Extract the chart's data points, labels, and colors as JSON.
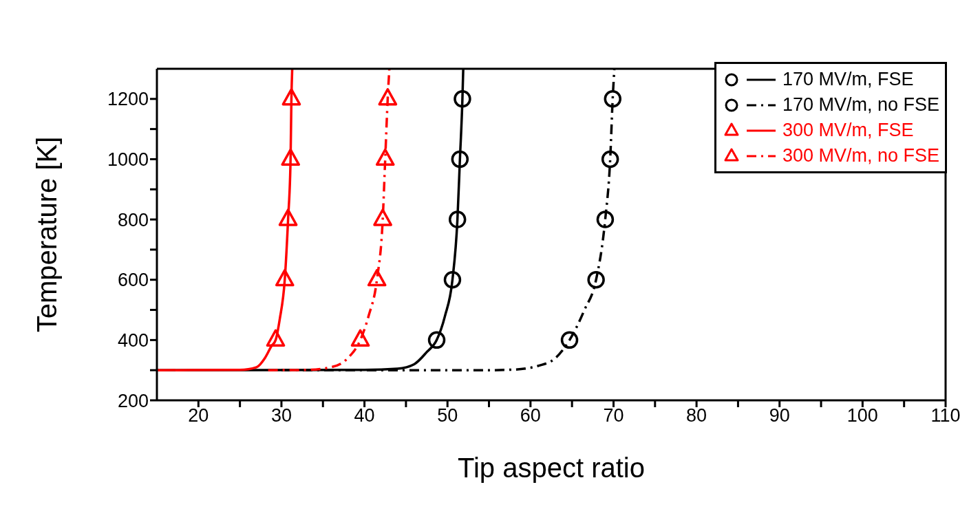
{
  "chart_data": {
    "type": "line",
    "xlabel": "Tip aspect ratio",
    "ylabel": "Temperature [K]",
    "xlim": [
      15,
      110
    ],
    "xticks": [
      20,
      {
        "value": 25,
        "label": null
      },
      30,
      {
        "value": 35,
        "label": null
      },
      40,
      {
        "value": 45,
        "label": null
      },
      50,
      {
        "value": 55,
        "label": null
      },
      60,
      {
        "value": 65,
        "label": null
      },
      70,
      {
        "value": 75,
        "label": null
      },
      80,
      {
        "value": 85,
        "label": null
      },
      90,
      {
        "value": 95,
        "label": null
      },
      100,
      {
        "value": 105,
        "label": null
      },
      110
    ],
    "ylim": [
      200,
      1300
    ],
    "yticks": [
      200,
      {
        "value": 300,
        "label": null
      },
      400,
      {
        "value": 500,
        "label": null
      },
      600,
      {
        "value": 700,
        "label": null
      },
      800,
      {
        "value": 900,
        "label": null
      },
      1000,
      {
        "value": 1100,
        "label": null
      },
      1200
    ],
    "grid": false,
    "legend": "top right",
    "series": [
      {
        "name": "170 MV/m, FSE",
        "color": "#000000",
        "line_style": "solid",
        "marker": "none",
        "x": [
          15,
          40,
          44,
          46,
          47.5,
          48.7,
          49.7,
          50.6,
          51.2,
          51.5,
          51.8,
          51.9
        ],
        "values": [
          300,
          301,
          305,
          320,
          360,
          400,
          480,
          600,
          800,
          1000,
          1200,
          1300
        ]
      },
      {
        "type": "scatter",
        "color": "#000000",
        "marker": "circle",
        "x": [
          48.7,
          50.6,
          51.2,
          51.5,
          51.8
        ],
        "values": [
          400,
          600,
          800,
          1000,
          1200
        ]
      },
      {
        "name": "170 MV/m, no FSE",
        "color": "#000000",
        "line_style": "dashdot",
        "marker": "none",
        "x": [
          30,
          55,
          58,
          61,
          63,
          64.7,
          66.5,
          67.9,
          69,
          69.6,
          69.9,
          70.1
        ],
        "values": [
          300,
          300,
          302,
          315,
          340,
          400,
          500,
          600,
          800,
          1000,
          1200,
          1300
        ]
      },
      {
        "type": "scatter",
        "color": "#000000",
        "marker": "circle",
        "x": [
          64.7,
          67.9,
          69,
          69.6,
          69.9
        ],
        "values": [
          400,
          600,
          800,
          1000,
          1200
        ]
      },
      {
        "name": "300 MV/m, FSE",
        "color": "#ff0000",
        "line_style": "solid",
        "marker": "none",
        "x": [
          15,
          25,
          27,
          28,
          28.8,
          29.3,
          29.8,
          30.4,
          30.8,
          31.1,
          31.2,
          31.3
        ],
        "values": [
          300,
          301,
          310,
          340,
          380,
          400,
          470,
          600,
          800,
          1000,
          1200,
          1300
        ]
      },
      {
        "type": "scatter",
        "color": "#ff0000",
        "marker": "triangle",
        "x": [
          29.3,
          30.4,
          30.8,
          31.1,
          31.2
        ],
        "values": [
          400,
          600,
          800,
          1000,
          1200
        ]
      },
      {
        "name": "300 MV/m, no FSE",
        "color": "#ff0000",
        "line_style": "dashdot",
        "marker": "none",
        "x": [
          28.4,
          33,
          36,
          38,
          39.5,
          40.5,
          41.5,
          42.2,
          42.5,
          42.8,
          43
        ],
        "values": [
          300,
          301,
          310,
          340,
          400,
          480,
          600,
          800,
          1000,
          1200,
          1300
        ]
      },
      {
        "type": "scatter",
        "color": "#ff0000",
        "marker": "triangle",
        "x": [
          39.5,
          41.5,
          42.2,
          42.5,
          42.8
        ],
        "values": [
          400,
          600,
          800,
          1000,
          1200
        ]
      }
    ]
  }
}
